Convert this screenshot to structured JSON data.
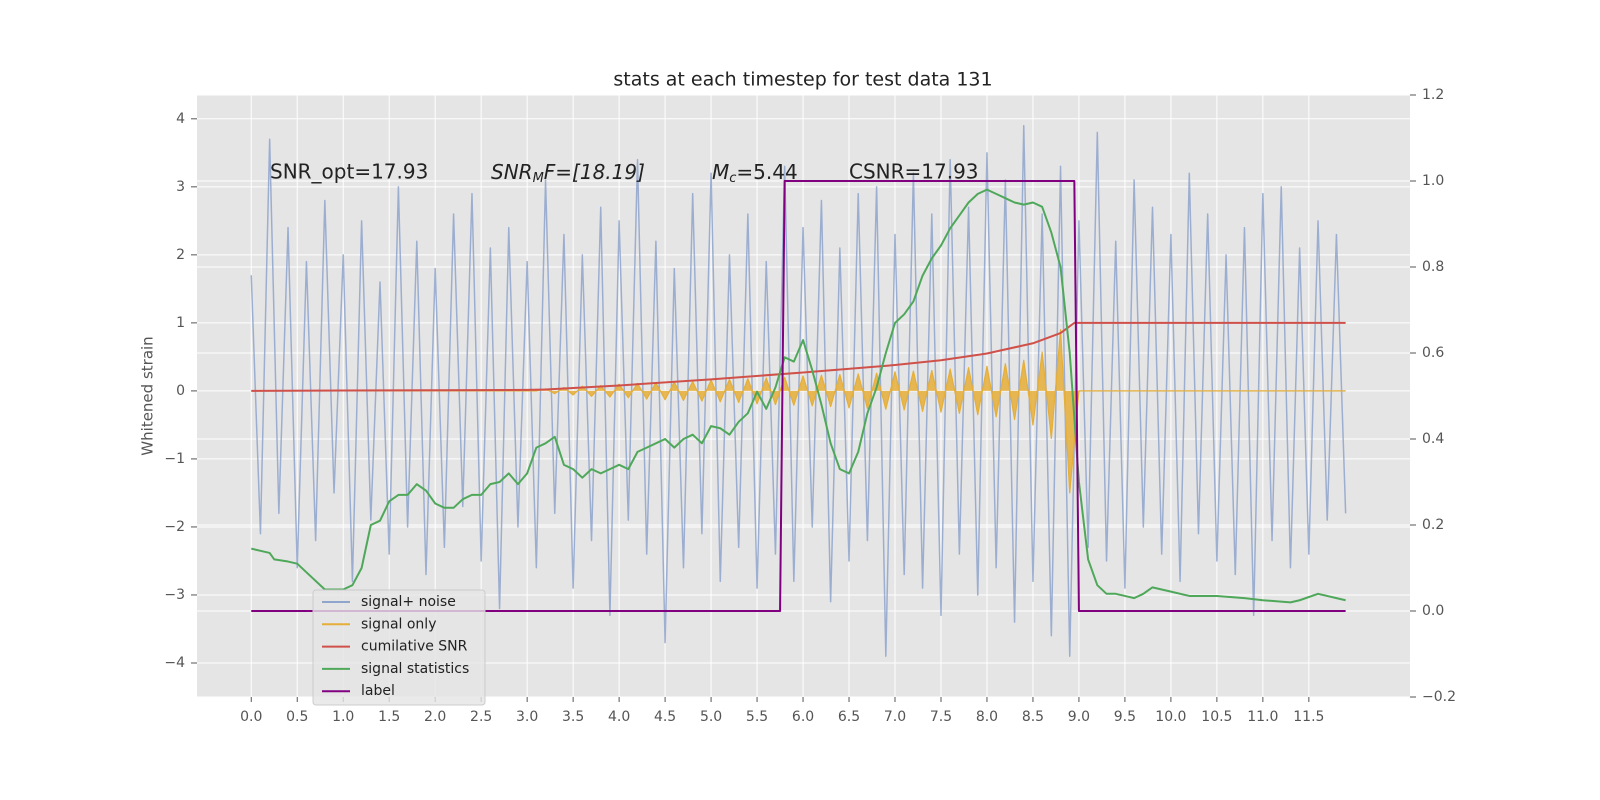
{
  "chart_data": {
    "type": "line",
    "title": "stats at each timestep for test data 131",
    "ylabel": "Whitened strain",
    "annotations": [
      "SNR_opt=17.93",
      {
        "main": "SNR",
        "sub": "M",
        "rest": "F=[18.19]"
      },
      {
        "main": "M",
        "sub": "c",
        "rest": "=5.44"
      },
      "CSNR=17.93"
    ],
    "xlim": [
      -0.59,
      12.6
    ],
    "ylim": [
      -4.5,
      4.35
    ],
    "y2lim": [
      -0.2,
      1.2
    ],
    "xticks": [
      {
        "value": 0,
        "label": "0.0"
      },
      0.5,
      {
        "value": 1,
        "label": "1.0"
      },
      1.5,
      {
        "value": 2,
        "label": "2.0"
      },
      2.5,
      {
        "value": 3,
        "label": "3.0"
      },
      3.5,
      {
        "value": 4,
        "label": "4.0"
      },
      4.5,
      {
        "value": 5,
        "label": "5.0"
      },
      5.5,
      {
        "value": 6,
        "label": "6.0"
      },
      6.5,
      {
        "value": 7,
        "label": "7.0"
      },
      7.5,
      {
        "value": 8,
        "label": "8.0"
      },
      8.5,
      {
        "value": 9,
        "label": "9.0"
      },
      9.5,
      {
        "value": 10,
        "label": "10.0"
      },
      10.5,
      {
        "value": 11,
        "label": "11.0"
      },
      11.5
    ],
    "yticks": [
      {
        "value": -4,
        "label": "−4"
      },
      {
        "value": -3,
        "label": "−3"
      },
      {
        "value": -2,
        "label": "−2"
      },
      {
        "value": -1,
        "label": "−1"
      },
      0,
      1,
      2,
      3,
      4
    ],
    "y2ticks": [
      {
        "value": -0.2,
        "label": "−0.2"
      },
      {
        "value": 0,
        "label": "0.0"
      },
      0.2,
      0.4,
      0.6,
      0.8,
      {
        "value": 1,
        "label": "1.0"
      },
      1.2
    ],
    "grid": true,
    "series": [
      {
        "name": "signal+ noise",
        "color": "#8fa5cc",
        "x": [
          0,
          0.1,
          0.2,
          0.3,
          0.4,
          0.5,
          0.6,
          0.7,
          0.8,
          0.9,
          1,
          1.1,
          1.2,
          1.3,
          1.4,
          1.5,
          1.6,
          1.7,
          1.8,
          1.9,
          2,
          2.1,
          2.2,
          2.3,
          2.4,
          2.5,
          2.6,
          2.7,
          2.8,
          2.9,
          3,
          3.1,
          3.2,
          3.3,
          3.4,
          3.5,
          3.6,
          3.7,
          3.8,
          3.9,
          4,
          4.1,
          4.2,
          4.3,
          4.4,
          4.5,
          4.6,
          4.7,
          4.8,
          4.9,
          5,
          5.1,
          5.2,
          5.3,
          5.4,
          5.5,
          5.6,
          5.7,
          5.8,
          5.9,
          6,
          6.1,
          6.2,
          6.3,
          6.4,
          6.5,
          6.6,
          6.7,
          6.8,
          6.9,
          7,
          7.1,
          7.2,
          7.3,
          7.4,
          7.5,
          7.6,
          7.7,
          7.8,
          7.9,
          8,
          8.1,
          8.2,
          8.3,
          8.4,
          8.5,
          8.6,
          8.7,
          8.8,
          8.9,
          9,
          9.1,
          9.2,
          9.3,
          9.4,
          9.5,
          9.6,
          9.7,
          9.8,
          9.9,
          10,
          10.1,
          10.2,
          10.3,
          10.4,
          10.5,
          10.6,
          10.7,
          10.8,
          10.9,
          11,
          11.1,
          11.2,
          11.3,
          11.4,
          11.5,
          11.6,
          11.7,
          11.8,
          11.9
        ],
        "values": [
          1.7,
          -2.1,
          3.7,
          -1.8,
          2.4,
          -2.6,
          1.9,
          -2.2,
          2.8,
          -1.5,
          2.0,
          -2.8,
          2.5,
          -1.9,
          1.6,
          -2.4,
          3.0,
          -2.0,
          2.2,
          -2.7,
          1.8,
          -2.3,
          2.6,
          -1.7,
          2.9,
          -2.5,
          2.1,
          -3.2,
          2.4,
          -2.0,
          1.9,
          -2.6,
          3.1,
          -1.8,
          2.3,
          -2.9,
          2.0,
          -2.2,
          2.7,
          -3.3,
          2.5,
          -1.9,
          3.4,
          -2.4,
          2.2,
          -3.7,
          1.8,
          -2.6,
          2.9,
          -2.1,
          3.2,
          -2.8,
          2.0,
          -2.3,
          2.6,
          -2.9,
          1.9,
          -2.4,
          3.3,
          -2.8,
          2.4,
          -2.0,
          2.8,
          -3.1,
          2.1,
          -2.5,
          2.9,
          -2.2,
          3.0,
          -3.9,
          2.3,
          -2.7,
          3.2,
          -2.9,
          2.6,
          -3.3,
          3.4,
          -2.4,
          2.7,
          -3.0,
          3.5,
          -2.6,
          3.1,
          -3.4,
          3.9,
          -2.8,
          2.6,
          -3.6,
          3.3,
          -3.9,
          2.5,
          -2.3,
          3.8,
          -2.5,
          2.2,
          -2.9,
          3.1,
          -2.0,
          2.7,
          -2.4,
          2.3,
          -2.8,
          3.2,
          -2.1,
          2.6,
          -2.5,
          2.0,
          -2.7,
          2.4,
          -3.3,
          2.9,
          -2.2,
          3.0,
          -2.6,
          2.1,
          -2.4,
          2.5,
          -1.9,
          2.3,
          -1.8
        ]
      },
      {
        "name": "signal only",
        "color": "#e5ae38",
        "fill": true,
        "x": [
          0,
          0.1,
          0.2,
          0.3,
          0.4,
          0.5,
          0.6,
          0.7,
          0.8,
          0.9,
          1,
          1.1,
          1.2,
          1.3,
          1.4,
          1.5,
          1.6,
          1.7,
          1.8,
          1.9,
          2,
          2.1,
          2.2,
          2.3,
          2.4,
          2.5,
          2.6,
          2.7,
          2.8,
          2.9,
          3,
          3.1,
          3.2,
          3.3,
          3.4,
          3.5,
          3.6,
          3.7,
          3.8,
          3.9,
          4,
          4.1,
          4.2,
          4.3,
          4.4,
          4.5,
          4.6,
          4.7,
          4.8,
          4.9,
          5,
          5.1,
          5.2,
          5.3,
          5.4,
          5.5,
          5.6,
          5.7,
          5.8,
          5.9,
          6,
          6.1,
          6.2,
          6.3,
          6.4,
          6.5,
          6.6,
          6.7,
          6.8,
          6.9,
          7,
          7.1,
          7.2,
          7.3,
          7.4,
          7.5,
          7.6,
          7.7,
          7.8,
          7.9,
          8,
          8.1,
          8.2,
          8.3,
          8.4,
          8.5,
          8.6,
          8.7,
          8.8,
          8.9,
          9,
          9.1,
          9.2,
          9.3,
          9.4,
          9.5,
          9.6,
          9.7,
          9.8,
          9.9,
          10,
          10.1,
          10.2,
          10.3,
          10.4,
          10.5,
          10.6,
          10.7,
          10.8,
          10.9,
          11,
          11.1,
          11.2,
          11.3,
          11.4,
          11.5,
          11.6,
          11.7,
          11.8,
          11.9
        ],
        "values": [
          0,
          0,
          0,
          0,
          0,
          0,
          0,
          0,
          0,
          0,
          0,
          0,
          0,
          0,
          0,
          0,
          0,
          0,
          0,
          0,
          0,
          0,
          0,
          0,
          0,
          0,
          0,
          0,
          0,
          0,
          0,
          0,
          0.03,
          -0.04,
          0.05,
          -0.06,
          0.07,
          -0.08,
          0.08,
          -0.09,
          0.1,
          -0.1,
          0.11,
          -0.12,
          0.12,
          -0.13,
          0.13,
          -0.14,
          0.14,
          -0.15,
          0.16,
          -0.16,
          0.17,
          -0.17,
          0.18,
          -0.19,
          0.19,
          -0.2,
          0.2,
          -0.21,
          0.22,
          -0.22,
          0.23,
          -0.23,
          0.24,
          -0.25,
          0.25,
          -0.26,
          0.26,
          -0.27,
          0.28,
          -0.28,
          0.29,
          -0.3,
          0.3,
          -0.31,
          0.32,
          -0.33,
          0.34,
          -0.35,
          0.36,
          -0.38,
          0.4,
          -0.42,
          0.45,
          -0.5,
          0.57,
          -0.7,
          0.9,
          -1.5,
          0,
          0,
          0,
          0,
          0,
          0,
          0,
          0,
          0,
          0,
          0,
          0,
          0,
          0,
          0,
          0,
          0,
          0,
          0,
          0,
          0,
          0,
          0,
          0,
          0,
          0,
          0,
          0,
          0,
          0
        ]
      },
      {
        "name": "cumilative SNR",
        "color": "#d0504a",
        "x": [
          0,
          1,
          2,
          3,
          3.2,
          4,
          5,
          6,
          7,
          7.5,
          8,
          8.5,
          8.8,
          8.95,
          9.0,
          11.9
        ],
        "values": [
          0,
          0.005,
          0.01,
          0.015,
          0.02,
          0.08,
          0.17,
          0.27,
          0.38,
          0.45,
          0.55,
          0.7,
          0.85,
          1.0,
          1.0,
          1.0
        ]
      },
      {
        "name": "signal statistics",
        "color": "#4fa85a",
        "axis": "y2",
        "x": [
          0,
          0.1,
          0.2,
          0.25,
          0.4,
          0.5,
          0.6,
          0.8,
          1.0,
          1.1,
          1.2,
          1.3,
          1.4,
          1.5,
          1.6,
          1.7,
          1.8,
          1.9,
          2.0,
          2.1,
          2.2,
          2.3,
          2.4,
          2.5,
          2.6,
          2.7,
          2.8,
          2.9,
          3.0,
          3.1,
          3.2,
          3.3,
          3.4,
          3.5,
          3.6,
          3.7,
          3.8,
          3.9,
          4.0,
          4.1,
          4.2,
          4.3,
          4.4,
          4.5,
          4.6,
          4.7,
          4.8,
          4.9,
          5.0,
          5.1,
          5.2,
          5.3,
          5.4,
          5.5,
          5.6,
          5.7,
          5.8,
          5.9,
          6.0,
          6.1,
          6.2,
          6.3,
          6.4,
          6.5,
          6.6,
          6.7,
          6.8,
          6.9,
          7.0,
          7.1,
          7.2,
          7.3,
          7.4,
          7.5,
          7.6,
          7.7,
          7.8,
          7.9,
          8.0,
          8.1,
          8.2,
          8.3,
          8.4,
          8.5,
          8.6,
          8.7,
          8.8,
          8.9,
          9.0,
          9.1,
          9.2,
          9.3,
          9.4,
          9.5,
          9.6,
          9.7,
          9.8,
          9.9,
          10.0,
          10.2,
          10.5,
          10.8,
          11.0,
          11.3,
          11.4,
          11.6,
          11.8,
          11.9
        ],
        "values": [
          0.145,
          0.14,
          0.135,
          0.12,
          0.115,
          0.11,
          0.09,
          0.05,
          0.05,
          0.06,
          0.1,
          0.2,
          0.21,
          0.255,
          0.27,
          0.27,
          0.295,
          0.28,
          0.25,
          0.24,
          0.24,
          0.26,
          0.27,
          0.27,
          0.295,
          0.3,
          0.32,
          0.295,
          0.32,
          0.38,
          0.39,
          0.405,
          0.34,
          0.33,
          0.31,
          0.33,
          0.32,
          0.33,
          0.34,
          0.33,
          0.37,
          0.38,
          0.39,
          0.4,
          0.38,
          0.4,
          0.41,
          0.39,
          0.43,
          0.425,
          0.41,
          0.44,
          0.46,
          0.51,
          0.47,
          0.52,
          0.59,
          0.58,
          0.63,
          0.56,
          0.48,
          0.39,
          0.33,
          0.32,
          0.37,
          0.46,
          0.52,
          0.6,
          0.67,
          0.69,
          0.72,
          0.78,
          0.82,
          0.85,
          0.89,
          0.92,
          0.95,
          0.97,
          0.98,
          0.97,
          0.96,
          0.95,
          0.945,
          0.95,
          0.94,
          0.88,
          0.8,
          0.6,
          0.3,
          0.12,
          0.06,
          0.04,
          0.04,
          0.035,
          0.03,
          0.04,
          0.055,
          0.05,
          0.045,
          0.035,
          0.035,
          0.03,
          0.025,
          0.02,
          0.025,
          0.04,
          0.03,
          0.025
        ]
      },
      {
        "name": "label",
        "color": "#800080",
        "axis": "y2",
        "x": [
          0,
          5.75,
          5.8,
          8.95,
          9.0,
          11.9
        ],
        "values": [
          0,
          0,
          1,
          1,
          0,
          0
        ]
      }
    ]
  }
}
